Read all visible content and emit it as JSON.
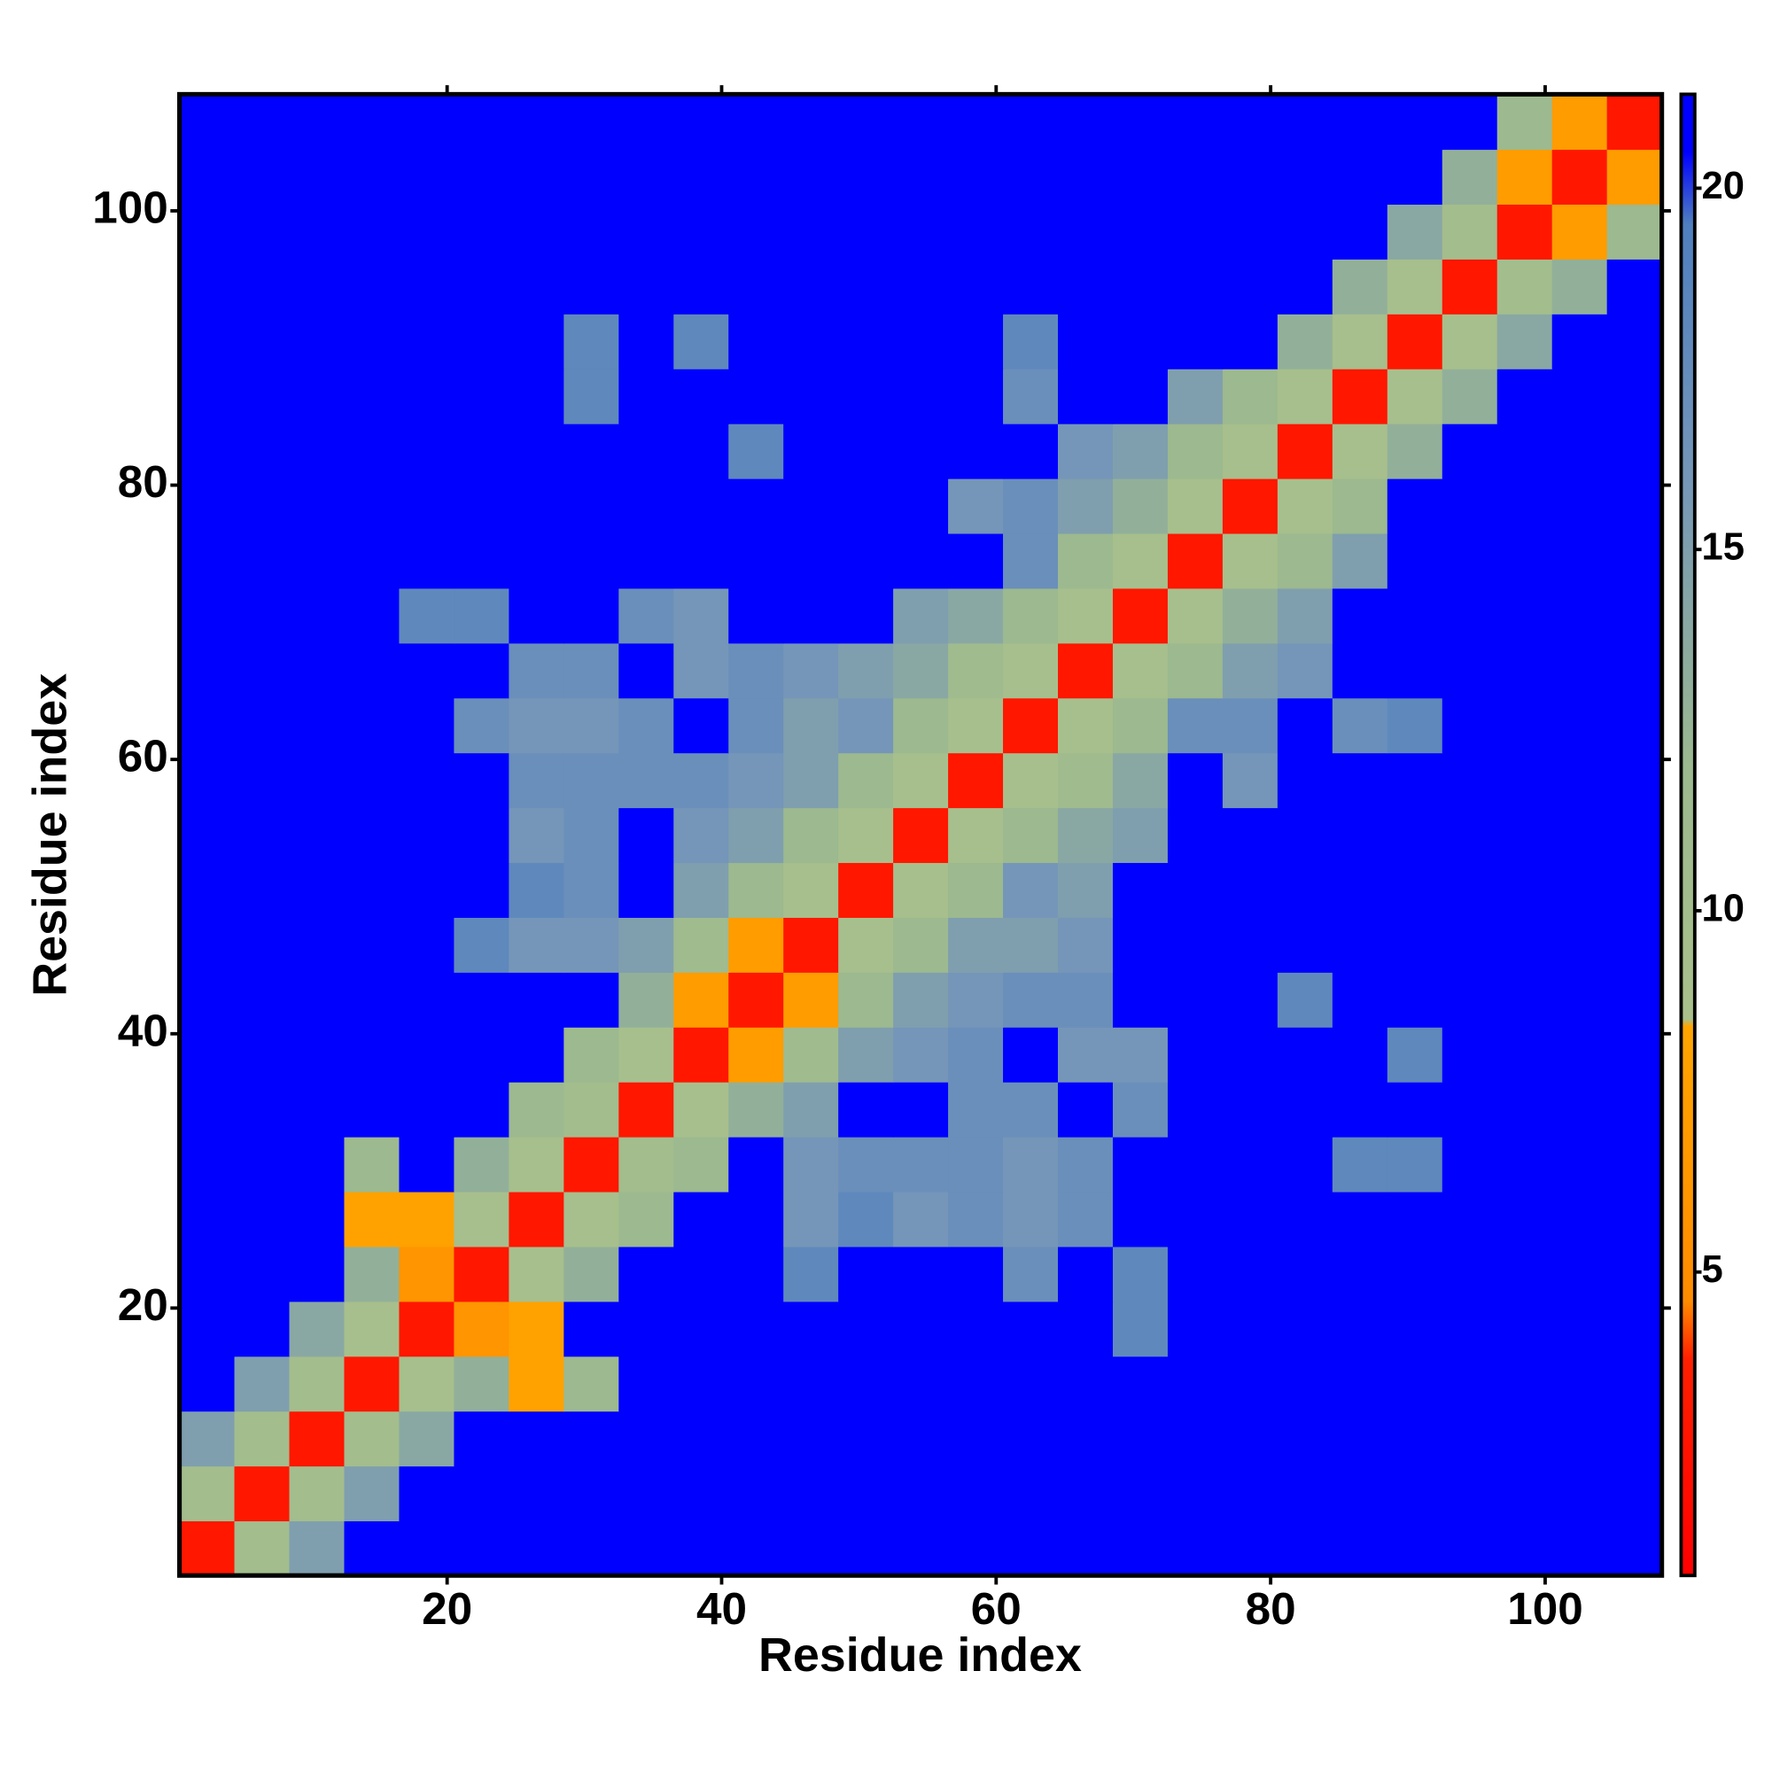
{
  "chart_data": {
    "type": "heatmap",
    "x_label": "Residue index",
    "y_label": "Residue index",
    "xlim": [
      0.5,
      108.5
    ],
    "ylim": [
      0.5,
      108.5
    ],
    "xticks": [
      20,
      40,
      60,
      80,
      100
    ],
    "yticks": [
      20,
      40,
      60,
      80,
      100
    ],
    "xbins": [
      0.5,
      4.5,
      8.5,
      12.5,
      16.5,
      20.5,
      24.5,
      28.5,
      32.5,
      36.5,
      40.5,
      44.5,
      48.5,
      52.5,
      56.5,
      60.5,
      64.5,
      68.5,
      72.5,
      76.5,
      80.5,
      84.5,
      88.5,
      92.5,
      96.5,
      100.5,
      104.5,
      108.5
    ],
    "ybins": [
      0.5,
      4.5,
      8.5,
      12.5,
      16.5,
      20.5,
      24.5,
      28.5,
      32.5,
      36.5,
      40.5,
      44.5,
      48.5,
      52.5,
      56.5,
      60.5,
      64.5,
      68.5,
      72.5,
      76.5,
      80.5,
      84.5,
      88.5,
      92.5,
      96.5,
      100.5,
      104.5,
      108.5
    ],
    "zlim": [
      0.8,
      21.3
    ],
    "zticks": [
      5,
      10,
      15,
      20
    ],
    "colorscale": [
      [
        0.8,
        "#ff0000"
      ],
      [
        3.8,
        "#ff2000"
      ],
      [
        4.6,
        "#ff8c00"
      ],
      [
        8.4,
        "#ffa500"
      ],
      [
        8.5,
        "#a9c08b"
      ],
      [
        12,
        "#9cb98f"
      ],
      [
        16,
        "#7596b8"
      ],
      [
        19.5,
        "#4f7fbf"
      ],
      [
        20.5,
        "#0000ff"
      ],
      [
        21.3,
        "#0000ff"
      ]
    ],
    "z": [
      [
        3,
        10,
        15,
        21,
        21,
        21,
        21,
        21,
        21,
        21,
        21,
        21,
        21,
        21,
        21,
        21,
        21,
        21,
        21,
        21,
        21,
        21,
        21,
        21,
        21,
        21,
        21
      ],
      [
        10,
        3,
        10,
        15,
        21,
        21,
        21,
        21,
        21,
        21,
        21,
        21,
        21,
        21,
        21,
        21,
        21,
        21,
        21,
        21,
        21,
        21,
        21,
        21,
        21,
        21,
        21
      ],
      [
        15,
        10,
        3,
        10,
        14,
        21,
        21,
        21,
        21,
        21,
        21,
        21,
        21,
        21,
        21,
        21,
        21,
        21,
        21,
        21,
        21,
        21,
        21,
        21,
        21,
        21,
        21
      ],
      [
        21,
        15,
        10,
        3,
        9,
        13,
        8,
        12,
        21,
        21,
        21,
        21,
        21,
        21,
        21,
        21,
        21,
        21,
        21,
        21,
        21,
        21,
        21,
        21,
        21,
        21,
        21
      ],
      [
        21,
        21,
        14,
        9,
        3,
        6,
        8,
        21,
        21,
        21,
        21,
        21,
        21,
        21,
        21,
        21,
        21,
        18,
        21,
        21,
        21,
        21,
        21,
        21,
        21,
        21,
        21
      ],
      [
        21,
        21,
        21,
        13,
        6,
        3,
        9,
        13,
        21,
        21,
        21,
        18,
        21,
        21,
        21,
        17,
        21,
        18,
        21,
        21,
        21,
        21,
        21,
        21,
        21,
        21,
        21
      ],
      [
        21,
        21,
        21,
        8,
        8,
        9,
        3,
        9,
        12,
        21,
        21,
        16,
        18,
        16,
        17,
        16,
        17,
        21,
        21,
        21,
        21,
        21,
        21,
        21,
        21,
        21,
        21
      ],
      [
        21,
        21,
        21,
        12,
        21,
        13,
        9,
        3,
        10,
        12,
        21,
        16,
        17,
        17,
        17,
        16,
        17,
        21,
        21,
        21,
        21,
        18,
        18,
        21,
        21,
        21,
        21
      ],
      [
        21,
        21,
        21,
        21,
        21,
        21,
        12,
        10,
        3,
        9,
        13,
        15,
        21,
        21,
        17,
        17,
        21,
        17,
        21,
        21,
        21,
        21,
        21,
        21,
        21,
        21,
        21
      ],
      [
        21,
        21,
        21,
        21,
        21,
        21,
        21,
        12,
        9,
        3,
        7,
        11,
        15,
        16,
        17,
        21,
        16,
        16,
        21,
        21,
        21,
        21,
        18,
        21,
        21,
        21,
        21
      ],
      [
        21,
        21,
        21,
        21,
        21,
        21,
        21,
        21,
        13,
        7,
        3,
        7,
        12,
        15,
        16,
        17,
        17,
        21,
        21,
        21,
        18,
        21,
        21,
        21,
        21,
        21,
        21
      ],
      [
        21,
        21,
        21,
        21,
        21,
        18,
        16,
        16,
        15,
        11,
        7,
        3,
        9,
        12,
        15,
        15,
        16,
        21,
        21,
        21,
        21,
        21,
        21,
        21,
        21,
        21,
        21
      ],
      [
        21,
        21,
        21,
        21,
        21,
        21,
        18,
        17,
        21,
        15,
        12,
        9,
        3,
        9,
        12,
        16,
        15,
        21,
        21,
        21,
        21,
        21,
        21,
        21,
        21,
        21,
        21
      ],
      [
        21,
        21,
        21,
        21,
        21,
        21,
        16,
        17,
        21,
        16,
        15,
        12,
        9,
        3,
        9,
        12,
        14,
        15,
        21,
        21,
        21,
        21,
        21,
        21,
        21,
        21,
        21
      ],
      [
        21,
        21,
        21,
        21,
        21,
        21,
        17,
        17,
        17,
        17,
        16,
        15,
        12,
        9,
        3,
        9,
        11,
        14,
        21,
        16,
        21,
        21,
        21,
        21,
        21,
        21,
        21
      ],
      [
        21,
        21,
        21,
        21,
        21,
        17,
        16,
        16,
        17,
        21,
        17,
        15,
        16,
        12,
        9,
        3,
        9,
        12,
        17,
        17,
        21,
        17,
        18,
        21,
        21,
        21,
        21
      ],
      [
        21,
        21,
        21,
        21,
        21,
        21,
        17,
        17,
        21,
        16,
        17,
        16,
        15,
        14,
        11,
        9,
        3,
        9,
        12,
        15,
        16,
        21,
        21,
        21,
        21,
        21,
        21
      ],
      [
        21,
        21,
        21,
        21,
        18,
        18,
        21,
        21,
        17,
        16,
        21,
        21,
        21,
        15,
        14,
        12,
        9,
        3,
        9,
        13,
        15,
        21,
        21,
        21,
        21,
        21,
        21
      ],
      [
        21,
        21,
        21,
        21,
        21,
        21,
        21,
        21,
        21,
        21,
        21,
        21,
        21,
        21,
        21,
        17,
        12,
        9,
        3,
        9,
        12,
        15,
        21,
        21,
        21,
        21,
        21
      ],
      [
        21,
        21,
        21,
        21,
        21,
        21,
        21,
        21,
        21,
        21,
        21,
        21,
        21,
        21,
        16,
        17,
        15,
        13,
        9,
        3,
        9,
        12,
        21,
        21,
        21,
        21,
        21
      ],
      [
        21,
        21,
        21,
        21,
        21,
        21,
        21,
        21,
        21,
        21,
        18,
        21,
        21,
        21,
        21,
        21,
        16,
        15,
        12,
        9,
        3,
        9,
        13,
        21,
        21,
        21,
        21
      ],
      [
        21,
        21,
        21,
        21,
        21,
        21,
        21,
        18,
        21,
        21,
        21,
        21,
        21,
        21,
        21,
        17,
        21,
        21,
        15,
        12,
        9,
        3,
        9,
        13,
        21,
        21,
        21
      ],
      [
        21,
        21,
        21,
        21,
        21,
        21,
        21,
        18,
        21,
        18,
        21,
        21,
        21,
        21,
        21,
        18,
        21,
        21,
        21,
        21,
        13,
        9,
        3,
        9,
        14,
        21,
        21
      ],
      [
        21,
        21,
        21,
        21,
        21,
        21,
        21,
        21,
        21,
        21,
        21,
        21,
        21,
        21,
        21,
        21,
        21,
        21,
        21,
        21,
        21,
        13,
        9,
        3,
        10,
        13,
        21
      ],
      [
        21,
        21,
        21,
        21,
        21,
        21,
        21,
        21,
        21,
        21,
        21,
        21,
        21,
        21,
        21,
        21,
        21,
        21,
        21,
        21,
        21,
        21,
        14,
        10,
        3,
        7,
        12
      ],
      [
        21,
        21,
        21,
        21,
        21,
        21,
        21,
        21,
        21,
        21,
        21,
        21,
        21,
        21,
        21,
        21,
        21,
        21,
        21,
        21,
        21,
        21,
        21,
        13,
        7,
        3,
        7
      ],
      [
        21,
        21,
        21,
        21,
        21,
        21,
        21,
        21,
        21,
        21,
        21,
        21,
        21,
        21,
        21,
        21,
        21,
        21,
        21,
        21,
        21,
        21,
        21,
        21,
        12,
        7,
        3
      ]
    ]
  }
}
